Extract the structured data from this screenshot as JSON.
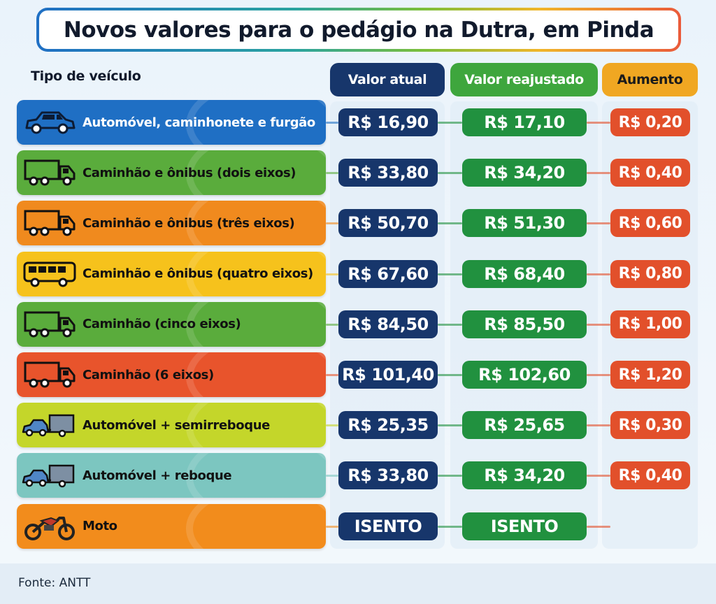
{
  "title": "Novos valores para o pedágio na Dutra, em Pinda",
  "header": {
    "vehicle_type": "Tipo de veículo",
    "current_value": "Valor atual",
    "adjusted_value": "Valor reajustado",
    "increase": "Aumento"
  },
  "rows": [
    {
      "label": "Automóvel, caminhonete e furgão",
      "icon": "car-icon",
      "color": "#1f6fc4",
      "label_color": "#ffffff",
      "atual": "R$ 16,90",
      "reajustado": "R$ 17,10",
      "aumento": "R$ 0,20"
    },
    {
      "label": "Caminhão e ônibus (dois eixos)",
      "icon": "truck-icon",
      "color": "#5aac3c",
      "label_color": "#111111",
      "atual": "R$ 33,80",
      "reajustado": "R$ 34,20",
      "aumento": "R$ 0,40"
    },
    {
      "label": "Caminhão e ônibus (três eixos)",
      "icon": "truck-icon",
      "color": "#f08a1e",
      "label_color": "#111111",
      "atual": "R$ 50,70",
      "reajustado": "R$ 51,30",
      "aumento": "R$ 0,60"
    },
    {
      "label": "Caminhão e ônibus (quatro eixos)",
      "icon": "bus-icon",
      "color": "#f6c21c",
      "label_color": "#111111",
      "atual": "R$ 67,60",
      "reajustado": "R$ 68,40",
      "aumento": "R$ 0,80"
    },
    {
      "label": "Caminhão (cinco eixos)",
      "icon": "truck-icon",
      "color": "#5aac3c",
      "label_color": "#111111",
      "atual": "R$ 84,50",
      "reajustado": "R$ 85,50",
      "aumento": "R$ 1,00"
    },
    {
      "label": "Caminhão (6 eixos)",
      "icon": "truck-icon",
      "color": "#e8542c",
      "label_color": "#111111",
      "atual": "R$ 101,40",
      "reajustado": "R$ 102,60",
      "aumento": "R$ 1,20"
    },
    {
      "label": "Automóvel + semirreboque",
      "icon": "car-trailer-icon",
      "color": "#c4d62a",
      "label_color": "#111111",
      "atual": "R$ 25,35",
      "reajustado": "R$ 25,65",
      "aumento": "R$ 0,30"
    },
    {
      "label": "Automóvel + reboque",
      "icon": "car-trailer-icon",
      "color": "#7cc6c0",
      "label_color": "#111111",
      "atual": "R$ 33,80",
      "reajustado": "R$ 34,20",
      "aumento": "R$ 0,40"
    },
    {
      "label": "Moto",
      "icon": "motorcycle-icon",
      "color": "#f28c1c",
      "label_color": "#111111",
      "atual": "ISENTO",
      "reajustado": "ISENTO",
      "aumento": ""
    }
  ],
  "footer": "Fonte: ANTT",
  "colors": {
    "atual": "#17366b",
    "reajustado": "#21913f",
    "aumento": "#e2502b",
    "aumento_header": "#f0a722"
  }
}
